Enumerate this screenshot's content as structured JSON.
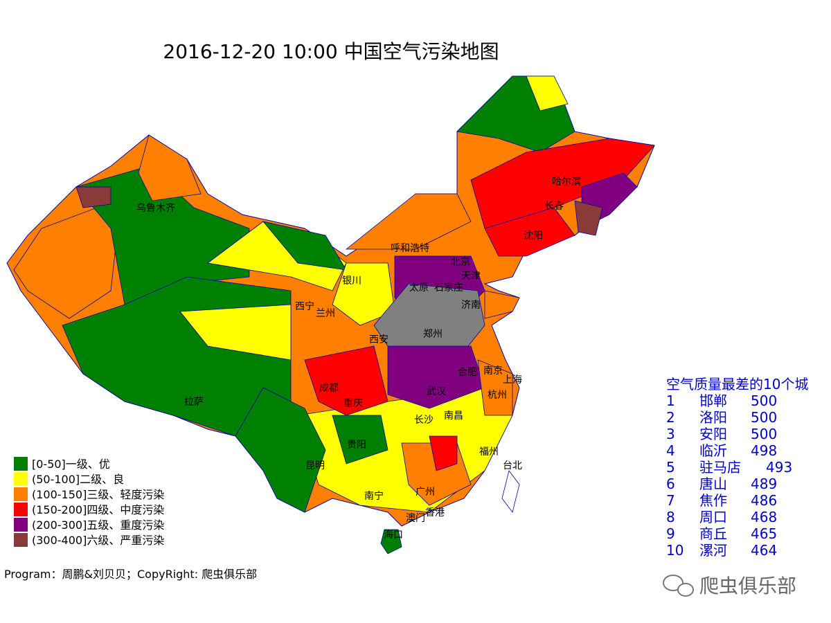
{
  "title": "2016-12-20 10:00 中国空气污染地图",
  "legend": [
    {
      "label": "[0-50]一级、优",
      "color": "#008000"
    },
    {
      "label": "(50-100]二级、良",
      "color": "#ffff00"
    },
    {
      "label": "(100-150]三级、轻度污染",
      "color": "#ff8000"
    },
    {
      "label": "(150-200]四级、中度污染",
      "color": "#ff0000"
    },
    {
      "label": "(200-300]五级、重度污染",
      "color": "#800080"
    },
    {
      "label": "(300-400]六级、严重污染",
      "color": "#8b3a3a"
    }
  ],
  "cities": [
    "乌鲁木齐",
    "呼和浩特",
    "银川",
    "西宁",
    "兰州",
    "北京",
    "天津",
    "太原",
    "石家庄",
    "济南",
    "西安",
    "郑州",
    "成都",
    "重庆",
    "武汉",
    "合肥",
    "南京",
    "上海",
    "杭州",
    "长沙",
    "南昌",
    "贵阳",
    "福州",
    "昆明",
    "南宁",
    "广州",
    "澳门",
    "香港",
    "台北",
    "海口",
    "拉萨",
    "哈尔滨",
    "长春",
    "沈阳"
  ],
  "ranking": {
    "title": "空气质量最差的10个城",
    "rows": [
      {
        "rank": 1,
        "city": "邯郸",
        "value": 500
      },
      {
        "rank": 2,
        "city": "洛阳",
        "value": 500
      },
      {
        "rank": 3,
        "city": "安阳",
        "value": 500
      },
      {
        "rank": 4,
        "city": "临沂",
        "value": 498
      },
      {
        "rank": 5,
        "city": "驻马店",
        "value": 493
      },
      {
        "rank": 6,
        "city": "唐山",
        "value": 489
      },
      {
        "rank": 7,
        "city": "焦作",
        "value": 486
      },
      {
        "rank": 8,
        "city": "周口",
        "value": 468
      },
      {
        "rank": 9,
        "city": "商丘",
        "value": 465
      },
      {
        "rank": 10,
        "city": "漯河",
        "value": 464
      }
    ]
  },
  "footer": "Program：周鹏&刘贝贝；CopyRight: 爬虫俱乐部",
  "watermark": "爬虫俱乐部"
}
